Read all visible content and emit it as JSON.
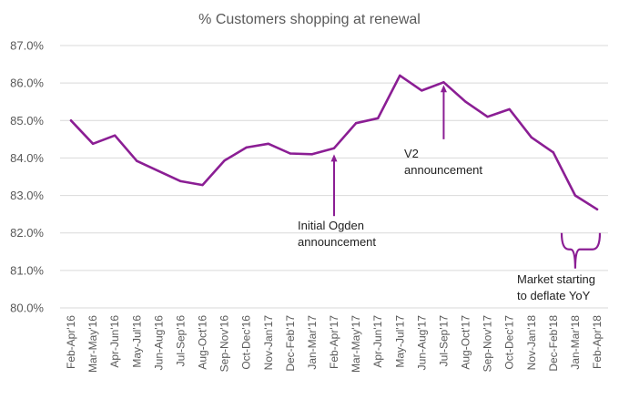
{
  "chart_data": {
    "type": "line",
    "title": "% Customers shopping at renewal",
    "xlabel": "",
    "ylabel": "",
    "ylim": [
      80.0,
      87.0
    ],
    "yticks": [
      "80.0%",
      "81.0%",
      "82.0%",
      "83.0%",
      "84.0%",
      "85.0%",
      "86.0%",
      "87.0%"
    ],
    "grid": true,
    "legend": "none",
    "color": "#8B1E94",
    "categories": [
      "Feb-Apr'16",
      "Mar-May'16",
      "Apr-Jun'16",
      "May-Jul'16",
      "Jun-Aug'16",
      "Jul-Sep'16",
      "Aug-Oct'16",
      "Sep-Nov'16",
      "Oct-Dec'16",
      "Nov-Jan'17",
      "Dec-Feb'17",
      "Jan-Mar'17",
      "Feb-Apr'17",
      "Mar-May'17",
      "Apr-Jun'17",
      "May-Jul'17",
      "Jun-Aug'17",
      "Jul-Sep'17",
      "Aug-Oct'17",
      "Sep-Nov'17",
      "Oct-Dec'17",
      "Nov-Jan'18",
      "Dec-Feb'18",
      "Jan-Mar'18",
      "Feb-Apr'18"
    ],
    "series": [
      {
        "values": [
          85.0,
          84.38,
          84.6,
          83.92,
          83.65,
          83.38,
          83.28,
          83.93,
          84.28,
          84.38,
          84.12,
          84.1,
          84.26,
          84.93,
          85.06,
          86.2,
          85.8,
          86.02,
          85.5,
          85.1,
          85.3,
          84.55,
          84.15,
          83.0,
          82.63
        ]
      }
    ],
    "annotations": [
      {
        "text_lines": [
          "Initial Ogden",
          "announcement"
        ],
        "category": "Feb-Apr'17",
        "arrow_from": 82.45,
        "arrow_to": 84.1,
        "marker": "arrow-up"
      },
      {
        "text_lines": [
          "V2",
          "announcement"
        ],
        "category": "Jul-Sep'17",
        "arrow_from": 84.5,
        "arrow_to": 85.95,
        "marker": "arrow-up"
      },
      {
        "text_lines": [
          "Market starting",
          "to deflate YoY"
        ],
        "category": "Jan-Mar'18",
        "marker": "brace",
        "brace_top": 82.0,
        "brace_bottom": 81.05
      }
    ]
  }
}
